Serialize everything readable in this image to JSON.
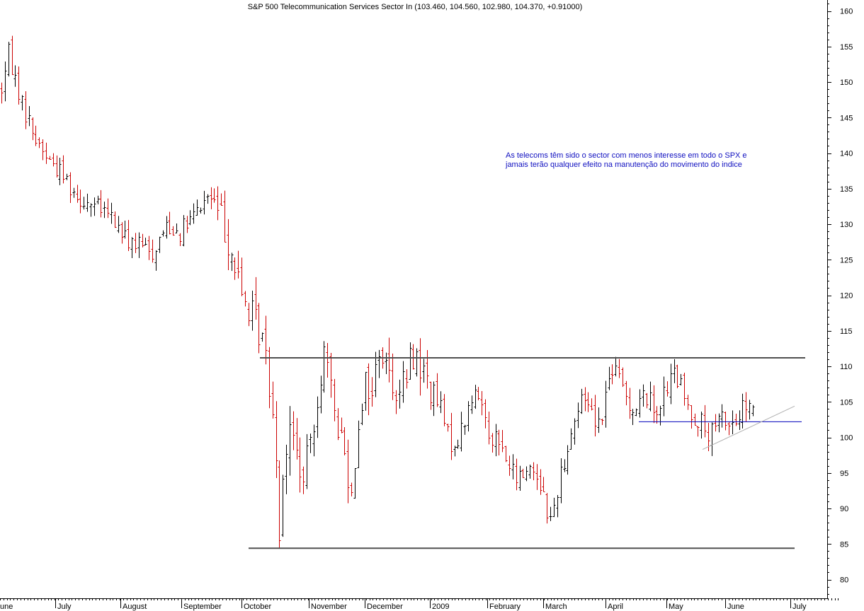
{
  "chart_data": {
    "type": "ohlc",
    "title": "S&P 500 Telecommunication Services Sector In (103.460, 104.560, 102.980, 104.370, +0.91000)",
    "ylim": [
      78,
      162
    ],
    "y_ticks": [
      80,
      85,
      90,
      95,
      100,
      105,
      110,
      115,
      120,
      125,
      130,
      135,
      140,
      145,
      150,
      155,
      160
    ],
    "x_months": [
      "une",
      "July",
      "August",
      "September",
      "October",
      "November",
      "December",
      "2009",
      "February",
      "March",
      "April",
      "May",
      "June",
      "July"
    ],
    "grid": false,
    "colors": {
      "up": "#000000",
      "down": "#cc0000",
      "resistance": "#505050",
      "support_line": "#0000bb",
      "trend_line": "#b0b0b0"
    },
    "price_path": [
      [
        0,
        149
      ],
      [
        2,
        154
      ],
      [
        6,
        147
      ],
      [
        10,
        142
      ],
      [
        14,
        139
      ],
      [
        18,
        137
      ],
      [
        22,
        134
      ],
      [
        26,
        133
      ],
      [
        32,
        131
      ],
      [
        36,
        128
      ],
      [
        40,
        127
      ],
      [
        44,
        126
      ],
      [
        48,
        130
      ],
      [
        52,
        129
      ],
      [
        56,
        131
      ],
      [
        60,
        134
      ],
      [
        62,
        133
      ],
      [
        64,
        131
      ],
      [
        66,
        128
      ],
      [
        68,
        124
      ],
      [
        70,
        120
      ],
      [
        72,
        118
      ],
      [
        74,
        116
      ],
      [
        76,
        114
      ],
      [
        78,
        108
      ],
      [
        80,
        99
      ],
      [
        81,
        86
      ],
      [
        82,
        96
      ],
      [
        84,
        101
      ],
      [
        86,
        98
      ],
      [
        88,
        93
      ],
      [
        90,
        100
      ],
      [
        92,
        106
      ],
      [
        94,
        112
      ],
      [
        96,
        106
      ],
      [
        98,
        102
      ],
      [
        100,
        98
      ],
      [
        102,
        92
      ],
      [
        104,
        103
      ],
      [
        106,
        108
      ],
      [
        108,
        106
      ],
      [
        110,
        113
      ],
      [
        112,
        110
      ],
      [
        114,
        108
      ],
      [
        116,
        106
      ],
      [
        118,
        109
      ],
      [
        120,
        112
      ],
      [
        122,
        110
      ],
      [
        124,
        108
      ],
      [
        126,
        106
      ],
      [
        128,
        104
      ],
      [
        130,
        100
      ],
      [
        132,
        99
      ],
      [
        134,
        101
      ],
      [
        136,
        104
      ],
      [
        138,
        106
      ],
      [
        140,
        105
      ],
      [
        142,
        101
      ],
      [
        144,
        100
      ],
      [
        146,
        98
      ],
      [
        148,
        96
      ],
      [
        150,
        94
      ],
      [
        152,
        95
      ],
      [
        154,
        96
      ],
      [
        156,
        95
      ],
      [
        158,
        92
      ],
      [
        160,
        88
      ],
      [
        162,
        93
      ],
      [
        164,
        97
      ],
      [
        166,
        101
      ],
      [
        168,
        104
      ],
      [
        170,
        106
      ],
      [
        172,
        104
      ],
      [
        174,
        102
      ],
      [
        176,
        106
      ],
      [
        178,
        110
      ],
      [
        180,
        108
      ],
      [
        182,
        106
      ],
      [
        184,
        104
      ],
      [
        186,
        105
      ],
      [
        188,
        106
      ],
      [
        190,
        104
      ],
      [
        192,
        105
      ],
      [
        194,
        107
      ],
      [
        196,
        109
      ],
      [
        198,
        107
      ],
      [
        200,
        104
      ],
      [
        202,
        103
      ],
      [
        204,
        102
      ],
      [
        206,
        100
      ],
      [
        208,
        101
      ],
      [
        210,
        103
      ],
      [
        212,
        102
      ],
      [
        214,
        102
      ],
      [
        216,
        104
      ]
    ],
    "annotation": "As telecoms têm sido o sector com menos interesse em todo o SPX e jamais terão qualquer efeito na manutenção do movimento do indice",
    "horizontal_levels": [
      {
        "name": "resistance",
        "value": 111.2
      },
      {
        "name": "support",
        "value": 84.4
      },
      {
        "name": "short-support",
        "value": 102.2
      }
    ],
    "trend_line": {
      "from": 98.3,
      "to": 104.4
    },
    "last_bar": {
      "open": 103.46,
      "high": 104.56,
      "low": 102.98,
      "close": 104.37,
      "change": 0.91
    }
  }
}
